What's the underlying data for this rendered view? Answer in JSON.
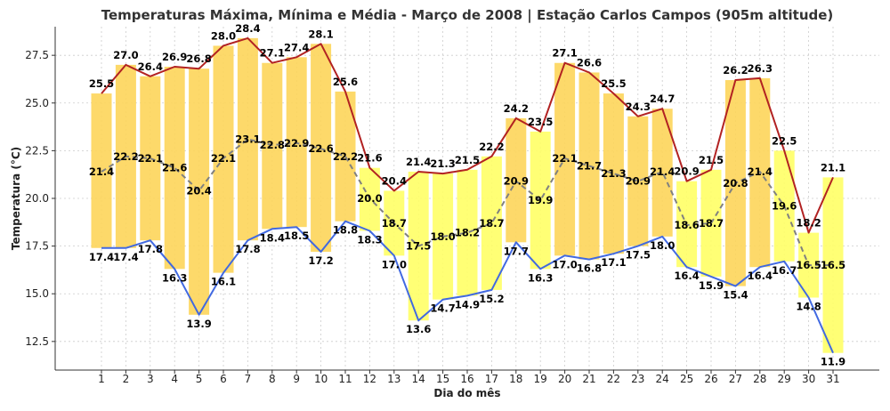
{
  "chart_data": {
    "type": "bar",
    "title": "Temperaturas Máxima, Mínima e Média - Março de 2008 | Estação Carlos Campos (905m altitude)",
    "xlabel": "Dia do mês",
    "ylabel": "Temperatura (°C)",
    "ylim": [
      11.0,
      29.0
    ],
    "yticks": [
      "12.5",
      "15.0",
      "17.5",
      "20.0",
      "22.5",
      "25.0",
      "27.5"
    ],
    "grid": true,
    "categories": [
      "1",
      "2",
      "3",
      "4",
      "5",
      "6",
      "7",
      "8",
      "9",
      "10",
      "11",
      "12",
      "13",
      "14",
      "15",
      "16",
      "17",
      "18",
      "19",
      "20",
      "21",
      "22",
      "23",
      "24",
      "25",
      "26",
      "27",
      "28",
      "29",
      "30",
      "31"
    ],
    "series": [
      {
        "values": [
          25.5,
          27.0,
          26.4,
          26.9,
          26.8,
          28.0,
          28.4,
          27.1,
          27.4,
          28.1,
          25.6,
          21.6,
          20.4,
          21.4,
          21.3,
          21.5,
          22.2,
          24.2,
          23.5,
          27.1,
          26.6,
          25.5,
          24.3,
          24.7,
          20.9,
          21.5,
          26.2,
          26.3,
          22.5,
          18.2,
          21.1
        ]
      },
      {
        "values": [
          17.4,
          17.4,
          17.8,
          16.3,
          13.9,
          16.1,
          17.8,
          18.4,
          18.5,
          17.2,
          18.8,
          18.3,
          17.0,
          13.6,
          14.7,
          14.9,
          15.2,
          17.7,
          16.3,
          17.0,
          16.8,
          17.1,
          17.5,
          18.0,
          16.4,
          15.9,
          15.4,
          16.4,
          16.7,
          14.8,
          11.9
        ]
      },
      {
        "values": [
          21.4,
          22.2,
          22.1,
          21.6,
          20.4,
          22.1,
          23.1,
          22.8,
          22.9,
          22.6,
          22.2,
          20.0,
          18.7,
          17.5,
          18.0,
          18.2,
          18.7,
          20.9,
          19.9,
          22.1,
          21.7,
          21.3,
          20.9,
          21.4,
          18.6,
          18.7,
          20.8,
          21.4,
          19.6,
          16.5,
          16.5
        ]
      }
    ],
    "colors": {
      "max_line": "#b22222",
      "min_line": "#4169e1",
      "mean_line": "#808080",
      "bar_warm": "#fdd55a",
      "bar_cool": "#ffff66"
    }
  }
}
